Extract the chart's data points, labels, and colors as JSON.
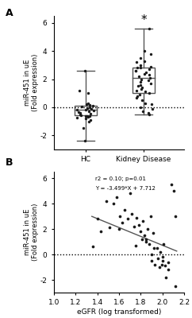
{
  "panel_A": {
    "HC": {
      "median": -0.15,
      "q1": -0.55,
      "q3": 0.1,
      "whisker_low": -2.4,
      "whisker_high": 2.6,
      "points": [
        -0.9,
        -0.75,
        -0.7,
        -0.65,
        -0.6,
        -0.55,
        -0.5,
        -0.45,
        -0.4,
        -0.35,
        -0.3,
        -0.25,
        -0.2,
        -0.15,
        -0.1,
        -0.05,
        0.0,
        0.05,
        0.1,
        0.15,
        0.2,
        1.2,
        -1.5,
        -1.0,
        2.6,
        -2.4,
        0.3,
        -0.8,
        1.0,
        -0.6
      ]
    },
    "KD": {
      "median": 2.1,
      "q1": 1.0,
      "q3": 2.8,
      "whisker_low": -0.5,
      "whisker_high": 5.6,
      "points": [
        5.6,
        4.0,
        3.8,
        3.5,
        3.2,
        3.0,
        2.8,
        2.7,
        2.6,
        2.5,
        2.4,
        2.3,
        2.2,
        2.1,
        2.0,
        1.9,
        1.8,
        1.7,
        1.6,
        1.5,
        1.4,
        1.2,
        1.0,
        0.8,
        0.5,
        0.2,
        -0.1,
        -0.3,
        -0.5,
        0.9,
        1.1,
        2.9,
        3.3,
        0.3,
        2.6,
        1.3,
        0.7,
        2.8,
        0.0,
        -0.4
      ]
    }
  },
  "panel_B": {
    "x": [
      1.4,
      1.43,
      1.48,
      1.51,
      1.55,
      1.58,
      1.6,
      1.61,
      1.63,
      1.65,
      1.68,
      1.7,
      1.72,
      1.74,
      1.76,
      1.78,
      1.8,
      1.81,
      1.82,
      1.83,
      1.85,
      1.86,
      1.88,
      1.89,
      1.9,
      1.91,
      1.92,
      1.93,
      1.95,
      1.96,
      1.97,
      1.98,
      1.99,
      2.0,
      2.01,
      2.02,
      2.03,
      2.05,
      2.08,
      2.1,
      2.12,
      1.36,
      1.75,
      1.85,
      1.9,
      2.0,
      2.05,
      2.12
    ],
    "y": [
      2.8,
      1.8,
      4.2,
      2.1,
      4.0,
      4.5,
      2.0,
      3.0,
      2.5,
      3.5,
      2.8,
      4.8,
      3.2,
      2.2,
      2.9,
      2.3,
      1.8,
      1.2,
      2.6,
      1.5,
      1.0,
      2.0,
      0.8,
      3.0,
      -0.5,
      1.7,
      0.5,
      -0.8,
      0.5,
      -0.3,
      -1.0,
      0.2,
      -0.8,
      -0.5,
      0.8,
      -0.9,
      -1.8,
      -0.6,
      5.5,
      5.0,
      -2.5,
      0.6,
      0.7,
      1.2,
      0.0,
      -0.2,
      -1.2,
      3.0
    ],
    "slope": -3.499,
    "intercept": 7.712,
    "r2_text": "r2 = 0.10; p=0.01",
    "eq_text": "Y = -3.499*X + 7.712",
    "xlim": [
      1.0,
      2.2
    ],
    "ylim": [
      -3.0,
      6.5
    ],
    "xticks": [
      1.0,
      1.2,
      1.4,
      1.6,
      1.8,
      2.0,
      2.2
    ],
    "yticks": [
      -2,
      0,
      2,
      4,
      6
    ]
  },
  "ylabel": "miR-451 in uE\n(Fold expression)",
  "xlabel_B": "eGFR (log transformed)",
  "label_A": "A",
  "label_B": "B",
  "ylim_A": [
    -3.0,
    6.5
  ],
  "yticks_A": [
    -2,
    0,
    2,
    4,
    6
  ],
  "point_color": "#1a1a1a",
  "box_color": "#555555",
  "line_color": "#555555",
  "background": "#ffffff"
}
